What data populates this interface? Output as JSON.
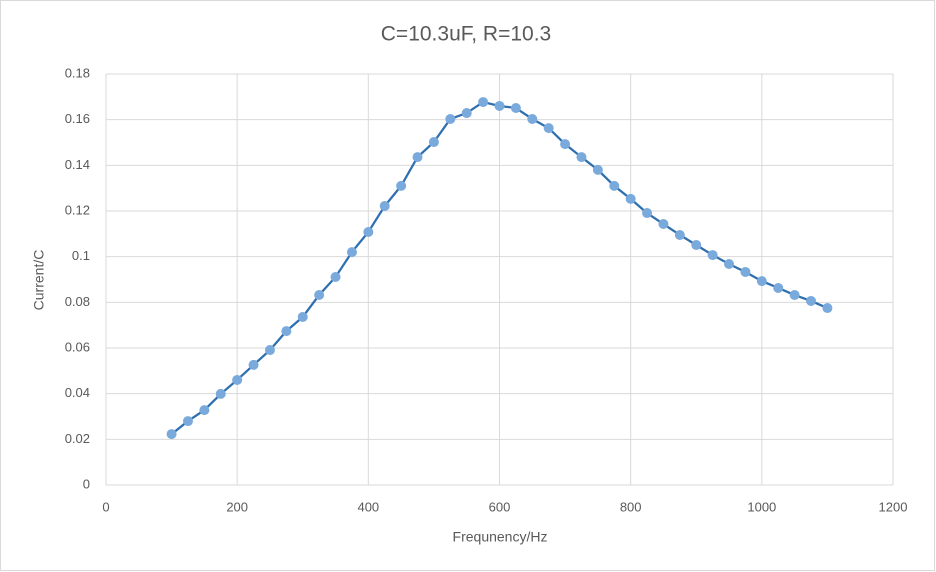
{
  "chart_data": {
    "type": "scatter-line",
    "title": "C=10.3uF, R=10.3",
    "x_label": "Frequnency/Hz",
    "y_label": "Current/C",
    "x": [
      100,
      125,
      150,
      175,
      200,
      225,
      250,
      275,
      300,
      325,
      350,
      375,
      400,
      425,
      450,
      475,
      500,
      525,
      550,
      575,
      600,
      625,
      650,
      675,
      700,
      725,
      750,
      775,
      800,
      825,
      850,
      875,
      900,
      925,
      950,
      975,
      1000,
      1025,
      1050,
      1075,
      1100
    ],
    "values": [
      0.0223,
      0.028,
      0.0328,
      0.0399,
      0.046,
      0.0526,
      0.0591,
      0.0674,
      0.0736,
      0.0832,
      0.0911,
      0.102,
      0.1108,
      0.1222,
      0.131,
      0.1436,
      0.1502,
      0.1603,
      0.1629,
      0.1677,
      0.166,
      0.1651,
      0.1603,
      0.1563,
      0.1493,
      0.1436,
      0.138,
      0.131,
      0.1253,
      0.1191,
      0.1143,
      0.1095,
      0.1051,
      0.1007,
      0.0968,
      0.0933,
      0.0893,
      0.0863,
      0.0832,
      0.0806,
      0.0775
    ],
    "color": "#2e6fb0",
    "marker_color": "#7aaadc",
    "xlim": [
      0,
      1200
    ],
    "xticks": [
      0,
      200,
      400,
      600,
      800,
      1000,
      1200
    ],
    "ylim": [
      0,
      0.18
    ],
    "yticks": [
      0,
      0.02,
      0.04,
      0.06,
      0.08,
      0.1,
      0.12,
      0.14,
      0.16,
      0.18
    ],
    "grid": true
  }
}
